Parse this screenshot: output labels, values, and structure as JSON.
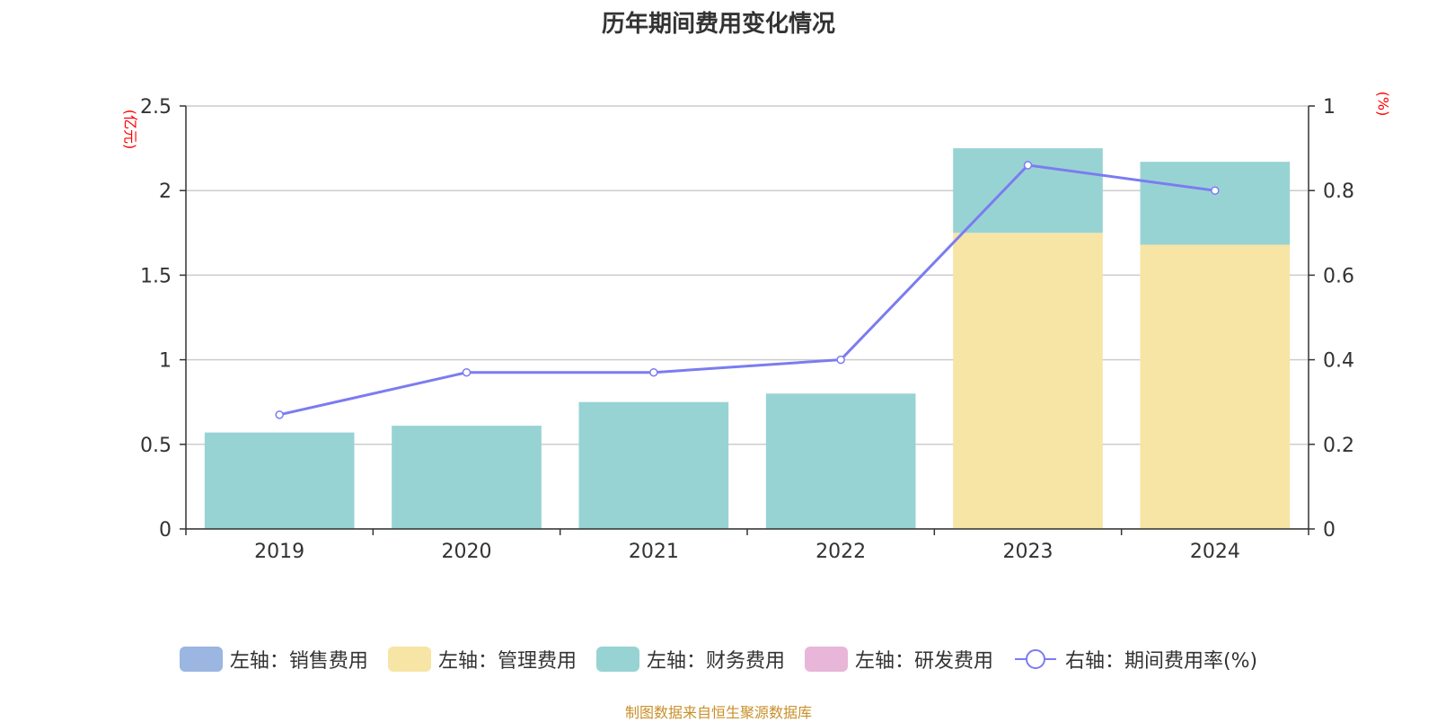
{
  "chart_data": {
    "type": "bar",
    "title": "历年期间费用变化情况",
    "categories": [
      "2019",
      "2020",
      "2021",
      "2022",
      "2023",
      "2024"
    ],
    "left_unit": "(亿元)",
    "right_unit": "(%)",
    "left_ylim": [
      0,
      2.5
    ],
    "left_ticks": [
      "0",
      "0.5",
      "1",
      "1.5",
      "2",
      "2.5"
    ],
    "right_ylim": [
      0,
      1
    ],
    "right_ticks": [
      "0",
      "0.2",
      "0.4",
      "0.6",
      "0.8",
      "1"
    ],
    "stacked": true,
    "grid": true,
    "legend_position": "bottom",
    "series": [
      {
        "name": "左轴：销售费用",
        "axis": "left",
        "type": "bar",
        "color": "#9bb6e0",
        "values": [
          0,
          0,
          0,
          0,
          0,
          0
        ]
      },
      {
        "name": "左轴：管理费用",
        "axis": "left",
        "type": "bar",
        "color": "#f7e5a6",
        "values": [
          0,
          0,
          0,
          0,
          1.75,
          1.68
        ]
      },
      {
        "name": "左轴：财务费用",
        "axis": "left",
        "type": "bar",
        "color": "#98d3d4",
        "values": [
          0.57,
          0.61,
          0.75,
          0.8,
          0.5,
          0.49
        ]
      },
      {
        "name": "左轴：研发费用",
        "axis": "left",
        "type": "bar",
        "color": "#e8b6d8",
        "values": [
          0,
          0,
          0,
          0,
          0,
          0
        ]
      },
      {
        "name": "右轴：期间费用率(%)",
        "axis": "right",
        "type": "line",
        "color": "#7b7cf0",
        "values": [
          0.27,
          0.37,
          0.37,
          0.4,
          0.86,
          0.8
        ]
      }
    ]
  },
  "source": "制图数据来自恒生聚源数据库"
}
